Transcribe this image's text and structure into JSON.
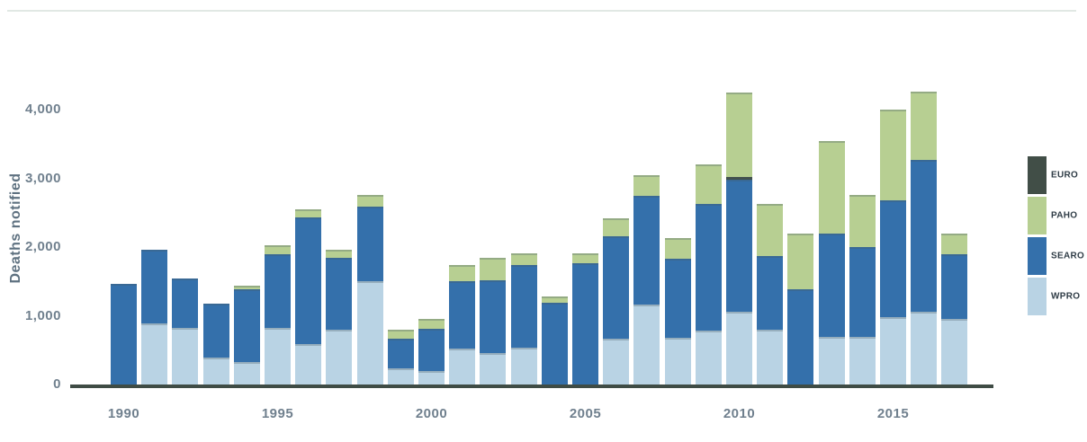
{
  "chart_data": {
    "type": "bar",
    "stacked": true,
    "title": "",
    "xlabel": "",
    "ylabel": "Deaths notified",
    "ylim": [
      0,
      4400
    ],
    "yticks": [
      0,
      1000,
      2000,
      3000,
      4000
    ],
    "ytick_labels": [
      "0",
      "1,000",
      "2,000",
      "3,000",
      "4,000"
    ],
    "x": [
      1990,
      1991,
      1992,
      1993,
      1994,
      1995,
      1996,
      1997,
      1998,
      1999,
      2000,
      2001,
      2002,
      2003,
      2004,
      2005,
      2006,
      2007,
      2008,
      2009,
      2010,
      2011,
      2012,
      2013,
      2014,
      2015,
      2016,
      2017
    ],
    "x_shown_ticks": [
      "1990",
      "1995",
      "2000",
      "2005",
      "2010",
      "2015"
    ],
    "grid": false,
    "legend_position": "right",
    "series": [
      {
        "name": "WPRO",
        "color": "#b9d3e4",
        "values": [
          0,
          890,
          825,
          390,
          325,
          825,
          590,
          800,
          1500,
          235,
          195,
          525,
          460,
          535,
          0,
          0,
          670,
          1160,
          680,
          785,
          1060,
          800,
          0,
          690,
          690,
          980,
          1060,
          955
        ]
      },
      {
        "name": "SEARO",
        "color": "#3470ab",
        "values": [
          1470,
          1070,
          715,
          785,
          1065,
          1070,
          1840,
          1045,
          1090,
          435,
          610,
          980,
          1055,
          1205,
          1185,
          1765,
          1490,
          1585,
          1150,
          1845,
          1920,
          1070,
          1390,
          1505,
          1310,
          1700,
          2210,
          940
        ]
      },
      {
        "name": "EURO",
        "color": "#414e47",
        "values": [
          0,
          0,
          0,
          0,
          0,
          0,
          0,
          0,
          0,
          0,
          0,
          0,
          0,
          0,
          0,
          0,
          0,
          0,
          0,
          0,
          40,
          0,
          0,
          0,
          0,
          0,
          0,
          0
        ]
      },
      {
        "name": "PAHO",
        "color": "#b7cf92",
        "values": [
          0,
          0,
          0,
          0,
          50,
          130,
          120,
          115,
          170,
          130,
          150,
          240,
          330,
          170,
          90,
          145,
          260,
          300,
          300,
          570,
          1230,
          760,
          805,
          1350,
          760,
          1320,
          990,
          300
        ]
      }
    ],
    "legend_entries": [
      {
        "label": "EURO",
        "color": "#414e47"
      },
      {
        "label": "PAHO",
        "color": "#b7cf92"
      },
      {
        "label": "SEARO",
        "color": "#3470ab"
      },
      {
        "label": "WPRO",
        "color": "#b9d3e4"
      }
    ],
    "colors": {
      "axis_line": "#3f4c45",
      "tick_text": "#70808e",
      "axis_title_text": "#5e7180",
      "legend_text": "#2f3c46",
      "top_rule": "#e1e8e4"
    }
  }
}
